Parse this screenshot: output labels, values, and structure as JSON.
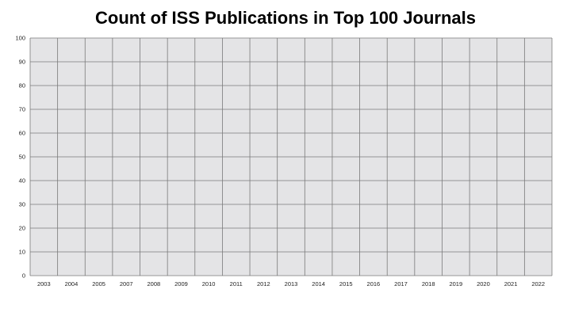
{
  "chart_data": {
    "type": "bar",
    "title": "Count of ISS Publications in Top 100 Journals",
    "xlabel": "",
    "ylabel": "",
    "categories": [
      "2003",
      "2004",
      "2005",
      "2007",
      "2008",
      "2009",
      "2010",
      "2011",
      "2012",
      "2013",
      "2014",
      "2015",
      "2016",
      "2017",
      "2018",
      "2019",
      "2020",
      "2021",
      "2022"
    ],
    "series": [],
    "ylim": [
      0,
      100
    ],
    "yticks": [
      0,
      10,
      20,
      30,
      40,
      50,
      60,
      70,
      80,
      90,
      100
    ],
    "grid": true,
    "colors": {
      "plot_background": "#e4e4e6",
      "gridline": "#7a7a7a"
    }
  }
}
